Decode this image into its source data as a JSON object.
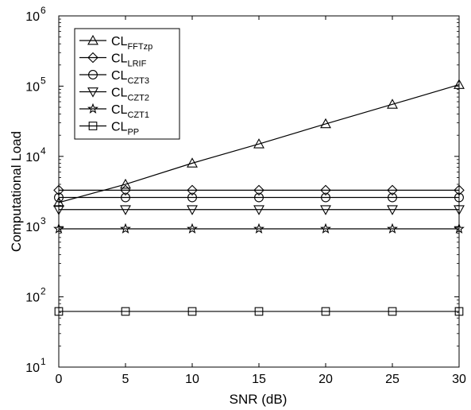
{
  "chart_data": {
    "type": "line",
    "title": "",
    "xlabel": "SNR (dB)",
    "ylabel": "Computational Load",
    "xlim": [
      0,
      30
    ],
    "ylim": [
      10,
      1000000
    ],
    "yscale": "log",
    "grid": false,
    "legend_position": "top-left",
    "x": [
      0,
      5,
      10,
      15,
      20,
      25,
      30
    ],
    "x_ticks": [
      "0",
      "5",
      "10",
      "15",
      "20",
      "25",
      "30"
    ],
    "y_ticks": [
      {
        "value": 10,
        "base": "10",
        "exp": "1"
      },
      {
        "value": 100,
        "base": "10",
        "exp": "2"
      },
      {
        "value": 1000,
        "base": "10",
        "exp": "3"
      },
      {
        "value": 10000,
        "base": "10",
        "exp": "4"
      },
      {
        "value": 100000,
        "base": "10",
        "exp": "5"
      },
      {
        "value": 1000000,
        "base": "10",
        "exp": "6"
      }
    ],
    "series": [
      {
        "name": "CL",
        "sub": "FFTzp",
        "marker": "triangle-up",
        "values": [
          2200,
          4000,
          8000,
          15000,
          29000,
          55000,
          105000
        ]
      },
      {
        "name": "CL",
        "sub": "LRIF",
        "marker": "diamond",
        "values": [
          3300,
          3300,
          3300,
          3300,
          3300,
          3300,
          3300
        ]
      },
      {
        "name": "CL",
        "sub": "CZT3",
        "marker": "circle",
        "values": [
          2600,
          2600,
          2600,
          2600,
          2600,
          2600,
          2600
        ]
      },
      {
        "name": "CL",
        "sub": "CZT2",
        "marker": "triangle-down",
        "values": [
          1750,
          1750,
          1750,
          1750,
          1750,
          1750,
          1750
        ]
      },
      {
        "name": "CL",
        "sub": "CZT1",
        "marker": "star",
        "values": [
          930,
          930,
          930,
          930,
          930,
          930,
          930
        ]
      },
      {
        "name": "CL",
        "sub": "PP",
        "marker": "square",
        "values": [
          62,
          62,
          62,
          62,
          62,
          62,
          62
        ]
      }
    ]
  }
}
